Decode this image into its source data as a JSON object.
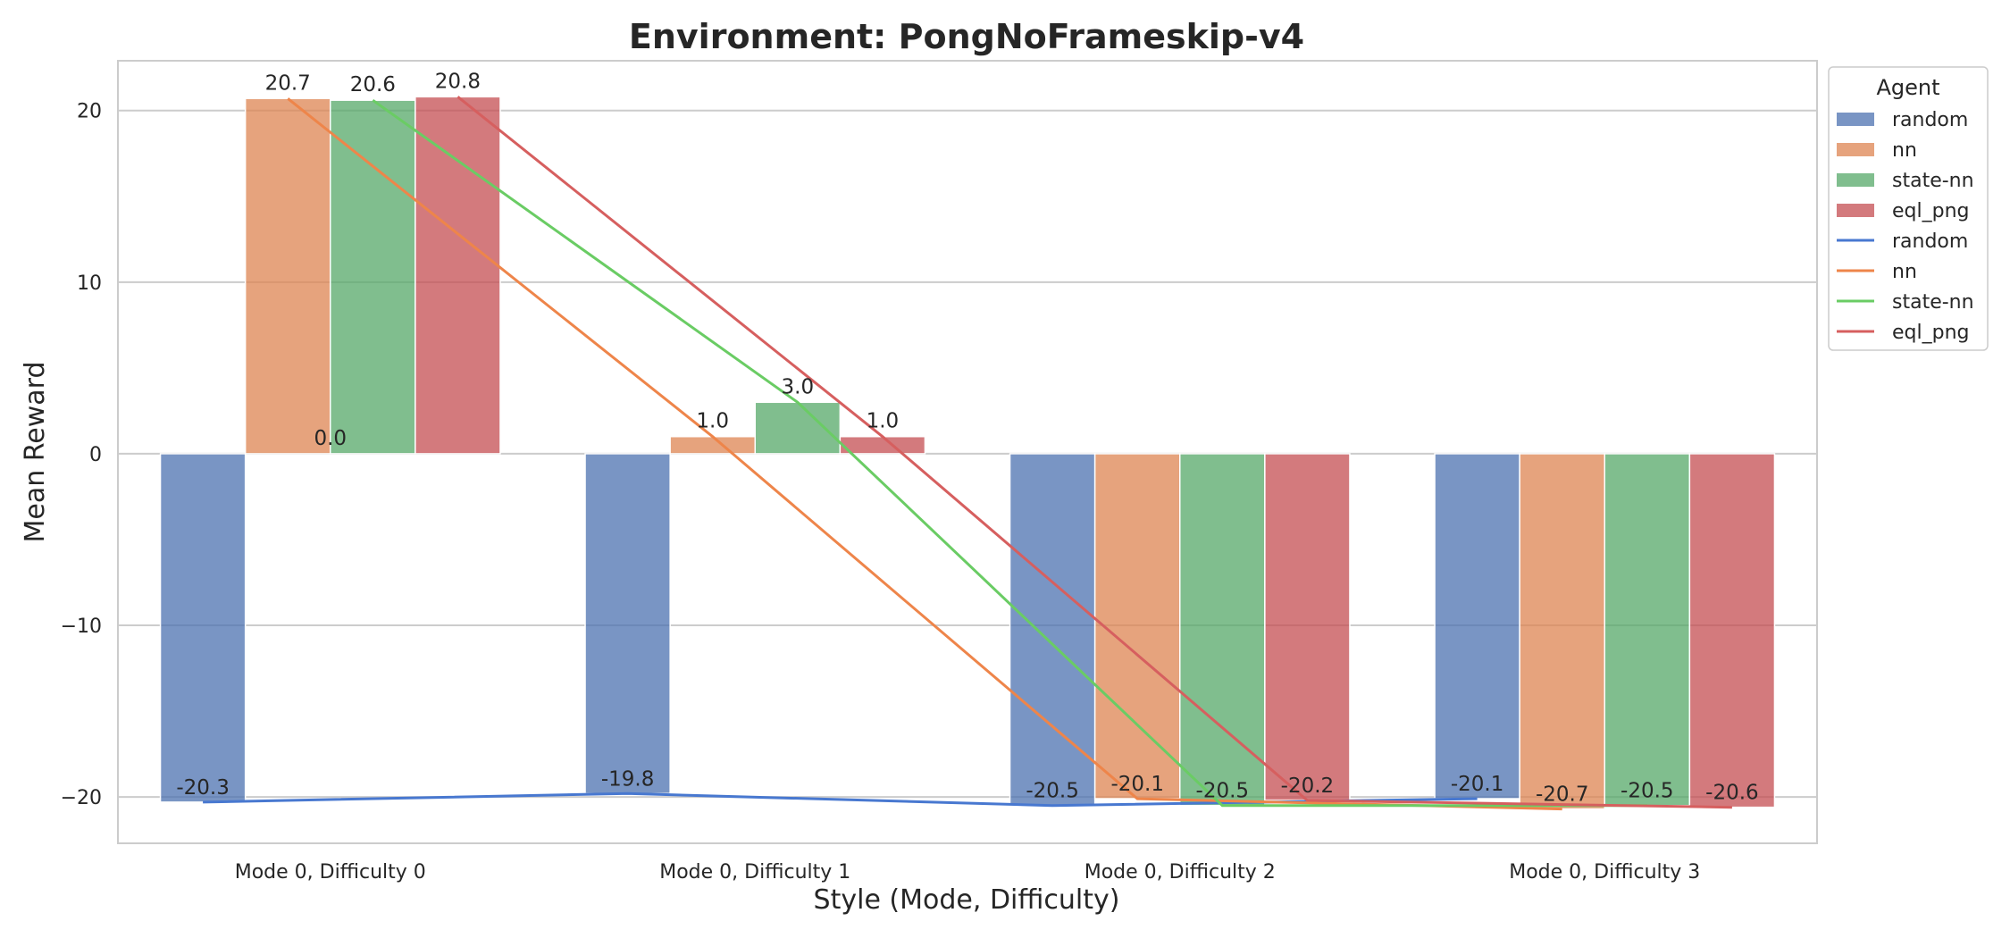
{
  "chart_data": {
    "type": "bar",
    "title": "Environment: PongNoFrameskip-v4",
    "xlabel": "Style (Mode, Difficulty)",
    "ylabel": "Mean Reward",
    "categories": [
      "Mode 0, Difficulty 0",
      "Mode 0, Difficulty 1",
      "Mode 0, Difficulty 2",
      "Mode 0, Difficulty 3"
    ],
    "ylim": [
      -22.7,
      22.9
    ],
    "yticks": [
      -20,
      -10,
      0,
      10,
      20
    ],
    "ytick_labels": [
      "−20",
      "−10",
      "0",
      "10",
      "20"
    ],
    "grid": "horizontal",
    "legend": {
      "title": "Agent",
      "placement": "upper-right-outside"
    },
    "series": [
      {
        "name": "random",
        "color": "#4c72b0",
        "values": [
          -20.3,
          -19.8,
          -20.5,
          -20.1
        ],
        "labels": [
          "-20.3",
          "-19.8",
          "-20.5",
          "-20.1"
        ]
      },
      {
        "name": "nn",
        "color": "#dd8452",
        "values": [
          20.7,
          1.0,
          -20.1,
          -20.7
        ],
        "labels": [
          "20.7",
          "1.0",
          "-20.1",
          "-20.7"
        ]
      },
      {
        "name": "state-nn",
        "color": "#55a868",
        "values": [
          20.6,
          3.0,
          -20.5,
          -20.5
        ],
        "labels": [
          "20.6",
          "3.0",
          "-20.5",
          "-20.5"
        ]
      },
      {
        "name": "eql_png",
        "color": "#c44e52",
        "values": [
          20.8,
          1.0,
          -20.2,
          -20.6
        ],
        "labels": [
          "20.8",
          "1.0",
          "-20.2",
          "-20.6"
        ]
      }
    ],
    "line_overlay": [
      {
        "name": "random",
        "color": "#4878d0",
        "values": [
          -20.3,
          -19.8,
          -20.5,
          -20.1
        ]
      },
      {
        "name": "nn",
        "color": "#ee854a",
        "values": [
          20.7,
          1.0,
          -20.1,
          -20.7
        ]
      },
      {
        "name": "state-nn",
        "color": "#6acc64",
        "values": [
          20.6,
          3.0,
          -20.5,
          -20.5
        ]
      },
      {
        "name": "eql_png",
        "color": "#d65f5f",
        "values": [
          20.8,
          1.0,
          -20.2,
          -20.6
        ]
      }
    ],
    "extra_annotation": "0.0"
  }
}
